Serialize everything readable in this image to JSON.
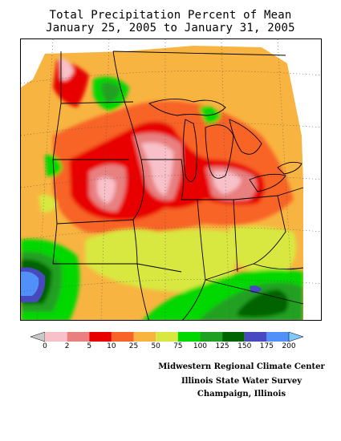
{
  "title": {
    "line1": "Total Precipitation Percent of Mean",
    "line2": "January 25, 2005 to January 31, 2005"
  },
  "legend": {
    "labels": [
      "0",
      "2",
      "5",
      "10",
      "25",
      "50",
      "75",
      "100",
      "125",
      "150",
      "175",
      "200"
    ],
    "colors": [
      "#c8c8c8",
      "#f8c0c8",
      "#e88080",
      "#e80000",
      "#f86428",
      "#f8b440",
      "#d8e840",
      "#00d800",
      "#20a020",
      "#006400",
      "#4848c0",
      "#5090f8",
      "#80c8f8"
    ]
  },
  "credits": {
    "line1": "Midwestern Regional Climate Center",
    "line2": "Illinois State Water Survey",
    "line3": "Champaign, Illinois"
  }
}
